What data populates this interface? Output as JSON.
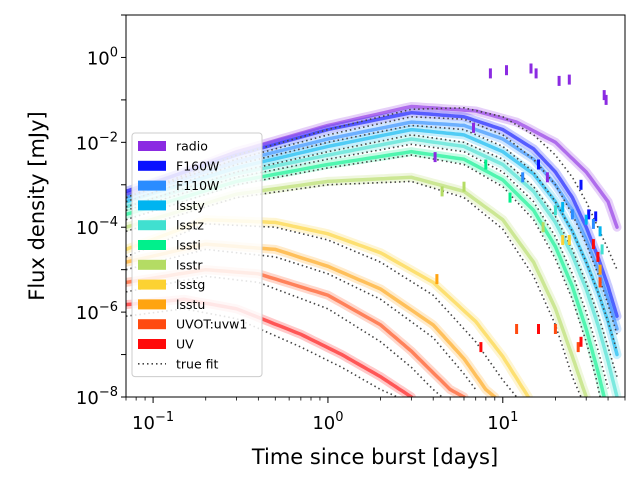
{
  "chart_data": {
    "type": "line",
    "title": "",
    "xlabel": "Time since burst [days]",
    "ylabel": "Flux density [mJy]",
    "xscale": "log",
    "yscale": "log",
    "xlim": [
      0.07,
      50
    ],
    "ylim": [
      1e-08,
      10
    ],
    "xticks": [
      {
        "value": 0.1,
        "base": "10",
        "exp": "−1"
      },
      {
        "value": 1,
        "base": "10",
        "exp": "0"
      },
      {
        "value": 10,
        "base": "10",
        "exp": "1"
      }
    ],
    "yticks": [
      {
        "value": 1,
        "base": "10",
        "exp": "0"
      },
      {
        "value": 0.01,
        "base": "10",
        "exp": "−2"
      },
      {
        "value": 0.0001,
        "base": "10",
        "exp": "−4"
      },
      {
        "value": 1e-06,
        "base": "10",
        "exp": "−6"
      },
      {
        "value": 1e-08,
        "base": "10",
        "exp": "−8"
      }
    ],
    "grid": false,
    "legend_position": "lower-left",
    "true_fit_label": "true fit",
    "series": [
      {
        "name": "radio",
        "color": "#8b2be2",
        "model": [
          [
            0.07,
            0.0006
          ],
          [
            0.3,
            0.006
          ],
          [
            1,
            0.025
          ],
          [
            3,
            0.07
          ],
          [
            7,
            0.055
          ],
          [
            12,
            0.03
          ],
          [
            20,
            0.01
          ],
          [
            30,
            0.002
          ],
          [
            40,
            0.0004
          ],
          [
            45,
            0.0001
          ]
        ],
        "truth": [
          [
            0.07,
            0.0005
          ],
          [
            0.3,
            0.005
          ],
          [
            1,
            0.02
          ],
          [
            3,
            0.06
          ],
          [
            6,
            0.065
          ],
          [
            10,
            0.04
          ],
          [
            15,
            0.015
          ],
          [
            20,
            0.005
          ],
          [
            25,
            0.0015
          ],
          [
            30,
            0.0004
          ],
          [
            35,
            0.0001
          ],
          [
            40,
            3e-05
          ],
          [
            45,
            1e-05
          ]
        ],
        "obs": [
          [
            4.1,
            0.0045
          ],
          [
            6.8,
            0.022
          ],
          [
            8.5,
            0.42
          ],
          [
            10.5,
            0.5
          ],
          [
            14.5,
            0.55
          ],
          [
            15.5,
            0.42
          ],
          [
            18,
            0.0015
          ],
          [
            21,
            0.28
          ],
          [
            24,
            0.3
          ],
          [
            38,
            0.13
          ],
          [
            39,
            0.1
          ]
        ]
      },
      {
        "name": "F160W",
        "color": "#0a12ff",
        "model": [
          [
            0.07,
            0.0007
          ],
          [
            0.3,
            0.005
          ],
          [
            1,
            0.02
          ],
          [
            3,
            0.05
          ],
          [
            6,
            0.04
          ],
          [
            10,
            0.02
          ],
          [
            15,
            0.007
          ],
          [
            20,
            0.002
          ],
          [
            25,
            0.0005
          ],
          [
            30,
            0.0001
          ],
          [
            35,
            2e-05
          ],
          [
            40,
            4e-06
          ],
          [
            45,
            8e-07
          ]
        ],
        "truth": [
          [
            0.07,
            0.0005
          ],
          [
            0.3,
            0.004
          ],
          [
            1,
            0.015
          ],
          [
            3,
            0.04
          ],
          [
            6,
            0.035
          ],
          [
            10,
            0.015
          ],
          [
            15,
            0.004
          ],
          [
            20,
            0.001
          ],
          [
            25,
            0.0002
          ],
          [
            30,
            4e-05
          ],
          [
            35,
            8e-06
          ],
          [
            40,
            1.5e-06
          ],
          [
            45,
            3e-07
          ]
        ],
        "obs": [
          [
            16,
            0.003
          ],
          [
            28,
            0.001
          ],
          [
            31,
            0.0002
          ],
          [
            34,
            0.00018
          ]
        ]
      },
      {
        "name": "F110W",
        "color": "#2a8cff",
        "model": [
          [
            0.07,
            0.0005
          ],
          [
            0.3,
            0.0035
          ],
          [
            1,
            0.012
          ],
          [
            3,
            0.03
          ],
          [
            6,
            0.025
          ],
          [
            10,
            0.012
          ],
          [
            15,
            0.004
          ],
          [
            20,
            0.001
          ],
          [
            25,
            0.00025
          ],
          [
            30,
            5e-05
          ],
          [
            35,
            1e-05
          ],
          [
            40,
            2e-06
          ],
          [
            45,
            4e-07
          ]
        ],
        "truth": [
          [
            0.07,
            0.0004
          ],
          [
            0.3,
            0.003
          ],
          [
            1,
            0.01
          ],
          [
            3,
            0.025
          ],
          [
            6,
            0.02
          ],
          [
            10,
            0.008
          ],
          [
            15,
            0.002
          ],
          [
            20,
            0.0004
          ],
          [
            25,
            8e-05
          ],
          [
            30,
            1.5e-05
          ],
          [
            35,
            3e-06
          ],
          [
            40,
            6e-07
          ],
          [
            45,
            1.2e-07
          ]
        ],
        "obs": [
          [
            13,
            0.0015
          ],
          [
            25,
            0.0002
          ],
          [
            33,
            0.00012
          ]
        ]
      },
      {
        "name": "lssty",
        "color": "#00b4f0",
        "model": [
          [
            0.07,
            0.0004
          ],
          [
            0.3,
            0.0025
          ],
          [
            1,
            0.008
          ],
          [
            3,
            0.02
          ],
          [
            6,
            0.015
          ],
          [
            10,
            0.006
          ],
          [
            15,
            0.0018
          ],
          [
            20,
            0.0004
          ],
          [
            25,
            8e-05
          ],
          [
            30,
            1.5e-05
          ],
          [
            35,
            3e-06
          ],
          [
            40,
            6e-07
          ],
          [
            45,
            1e-07
          ]
        ],
        "truth": [
          [
            0.07,
            0.0003
          ],
          [
            0.3,
            0.002
          ],
          [
            1,
            0.006
          ],
          [
            3,
            0.015
          ],
          [
            6,
            0.01
          ],
          [
            10,
            0.004
          ],
          [
            15,
            0.0009
          ],
          [
            20,
            0.00018
          ],
          [
            25,
            3e-05
          ],
          [
            30,
            5e-06
          ],
          [
            35,
            9e-07
          ],
          [
            40,
            1.5e-07
          ],
          [
            45,
            3e-08
          ]
        ],
        "obs": [
          [
            22,
            0.0003
          ],
          [
            30,
            0.00015
          ],
          [
            36,
            8e-05
          ]
        ]
      },
      {
        "name": "lsstz",
        "color": "#40e0d0",
        "model": [
          [
            0.07,
            0.0003
          ],
          [
            0.3,
            0.0018
          ],
          [
            1,
            0.005
          ],
          [
            3,
            0.012
          ],
          [
            6,
            0.008
          ],
          [
            10,
            0.003
          ],
          [
            15,
            0.0007
          ],
          [
            20,
            0.00013
          ],
          [
            25,
            2.2e-05
          ],
          [
            30,
            3.5e-06
          ],
          [
            35,
            5e-07
          ],
          [
            40,
            7e-08
          ],
          [
            45,
            1e-08
          ]
        ],
        "truth": [
          [
            0.07,
            0.00025
          ],
          [
            0.3,
            0.0015
          ],
          [
            1,
            0.004
          ],
          [
            3,
            0.009
          ],
          [
            6,
            0.006
          ],
          [
            10,
            0.002
          ],
          [
            15,
            0.0004
          ],
          [
            20,
            6e-05
          ],
          [
            25,
            8e-06
          ],
          [
            30,
            1e-06
          ],
          [
            35,
            1.3e-07
          ],
          [
            40,
            1.6e-08
          ]
        ],
        "obs": [
          [
            20,
            0.00025
          ],
          [
            37,
            3e-05
          ]
        ]
      },
      {
        "name": "lssti",
        "color": "#00f08c",
        "model": [
          [
            0.07,
            0.0002
          ],
          [
            0.3,
            0.0012
          ],
          [
            1,
            0.003
          ],
          [
            3,
            0.006
          ],
          [
            6,
            0.004
          ],
          [
            10,
            0.0013
          ],
          [
            15,
            0.00025
          ],
          [
            20,
            3.5e-05
          ],
          [
            25,
            4e-06
          ],
          [
            30,
            4e-07
          ],
          [
            35,
            4e-08
          ],
          [
            38,
            1e-08
          ]
        ],
        "truth": [
          [
            0.07,
            0.00015
          ],
          [
            0.3,
            0.001
          ],
          [
            1,
            0.0025
          ],
          [
            3,
            0.005
          ],
          [
            6,
            0.003
          ],
          [
            10,
            0.0009
          ],
          [
            15,
            0.00015
          ],
          [
            20,
            1.8e-05
          ],
          [
            25,
            2e-06
          ],
          [
            30,
            2e-07
          ],
          [
            34,
            3e-08
          ],
          [
            36,
            1e-08
          ]
        ],
        "obs": [
          [
            8,
            0.003
          ],
          [
            11,
            0.0005
          ]
        ]
      },
      {
        "name": "lsstr",
        "color": "#b4dc64",
        "model": [
          [
            0.07,
            0.0001
          ],
          [
            0.3,
            0.0006
          ],
          [
            1,
            0.0012
          ],
          [
            3,
            0.0015
          ],
          [
            6,
            0.0007
          ],
          [
            10,
            0.00015
          ],
          [
            15,
            1.5e-05
          ],
          [
            20,
            1.2e-06
          ],
          [
            25,
            9e-08
          ],
          [
            30,
            1e-08
          ]
        ],
        "truth": [
          [
            0.07,
            8e-05
          ],
          [
            0.3,
            0.0005
          ],
          [
            1,
            0.001
          ],
          [
            3,
            0.0012
          ],
          [
            6,
            0.0005
          ],
          [
            10,
            9e-05
          ],
          [
            15,
            7e-06
          ],
          [
            20,
            5e-07
          ],
          [
            25,
            3e-08
          ],
          [
            28,
            1e-08
          ]
        ],
        "obs": [
          [
            4.5,
            0.0007
          ],
          [
            6,
            0.0009
          ],
          [
            17,
            0.0001
          ]
        ]
      },
      {
        "name": "lsstg",
        "color": "#fcd232",
        "model": [
          [
            0.07,
            3e-05
          ],
          [
            0.2,
            0.00015
          ],
          [
            0.5,
            0.00013
          ],
          [
            1,
            7e-05
          ],
          [
            2,
            2.5e-05
          ],
          [
            4,
            5e-06
          ],
          [
            7,
            6e-07
          ],
          [
            10,
            9e-08
          ],
          [
            14,
            1e-08
          ]
        ],
        "truth": [
          [
            0.07,
            2e-05
          ],
          [
            0.2,
            0.00012
          ],
          [
            0.5,
            0.0001
          ],
          [
            1,
            5e-05
          ],
          [
            2,
            1.5e-05
          ],
          [
            4,
            2.5e-06
          ],
          [
            7,
            2e-07
          ],
          [
            10,
            2.5e-08
          ],
          [
            12,
            1e-08
          ]
        ],
        "obs": [
          [
            22,
            5e-05
          ],
          [
            24,
            5e-05
          ]
        ]
      },
      {
        "name": "lsstu",
        "color": "#ffa410",
        "model": [
          [
            0.07,
            1.5e-05
          ],
          [
            0.2,
            4e-05
          ],
          [
            0.5,
            3e-05
          ],
          [
            1,
            1.2e-05
          ],
          [
            2,
            3.5e-06
          ],
          [
            4,
            5e-07
          ],
          [
            6,
            8e-08
          ],
          [
            8,
            1.5e-08
          ],
          [
            9,
            1e-08
          ]
        ],
        "truth": [
          [
            0.07,
            1e-05
          ],
          [
            0.2,
            3e-05
          ],
          [
            0.5,
            2e-05
          ],
          [
            1,
            8e-06
          ],
          [
            2,
            2e-06
          ],
          [
            4,
            2.5e-07
          ],
          [
            6,
            3.5e-08
          ],
          [
            7,
            1.5e-08
          ]
        ],
        "obs": [
          [
            4.2,
            6e-06
          ],
          [
            36,
            1e-05
          ]
        ]
      },
      {
        "name": "UVOT:uvw1",
        "color": "#ff4a10",
        "model": [
          [
            0.07,
            5e-06
          ],
          [
            0.2,
            1e-05
          ],
          [
            0.4,
            8e-06
          ],
          [
            1,
            2.5e-06
          ],
          [
            2,
            5e-07
          ],
          [
            3,
            1.2e-07
          ],
          [
            5,
            1.5e-08
          ],
          [
            6,
            1e-08
          ]
        ],
        "truth": [
          [
            0.07,
            3e-06
          ],
          [
            0.2,
            7e-06
          ],
          [
            0.4,
            5e-06
          ],
          [
            1,
            1.2e-06
          ],
          [
            2,
            2e-07
          ],
          [
            3,
            5e-08
          ],
          [
            4,
            1.5e-08
          ],
          [
            4.5,
            1e-08
          ]
        ],
        "obs": [
          [
            12,
            4e-07
          ],
          [
            20,
            4e-07
          ],
          [
            27,
            1.5e-07
          ],
          [
            36,
            5e-06
          ]
        ]
      },
      {
        "name": "UV",
        "color": "#ff0a0a",
        "model": [
          [
            0.07,
            1.5e-06
          ],
          [
            0.15,
            2e-06
          ],
          [
            0.3,
            1.2e-06
          ],
          [
            0.7,
            3e-07
          ],
          [
            1.2,
            1e-07
          ],
          [
            2,
            3e-08
          ],
          [
            3,
            1e-08
          ]
        ],
        "truth": [
          [
            0.07,
            8e-07
          ],
          [
            0.15,
            1.2e-06
          ],
          [
            0.3,
            7e-07
          ],
          [
            0.7,
            1.5e-07
          ],
          [
            1.2,
            5e-08
          ],
          [
            2,
            1.5e-08
          ],
          [
            2.5,
            1e-08
          ]
        ],
        "obs": [
          [
            7.5,
            1.5e-07
          ],
          [
            16,
            4e-07
          ],
          [
            28,
            2e-07
          ],
          [
            33,
            4e-05
          ],
          [
            35,
            2e-05
          ]
        ]
      }
    ]
  }
}
